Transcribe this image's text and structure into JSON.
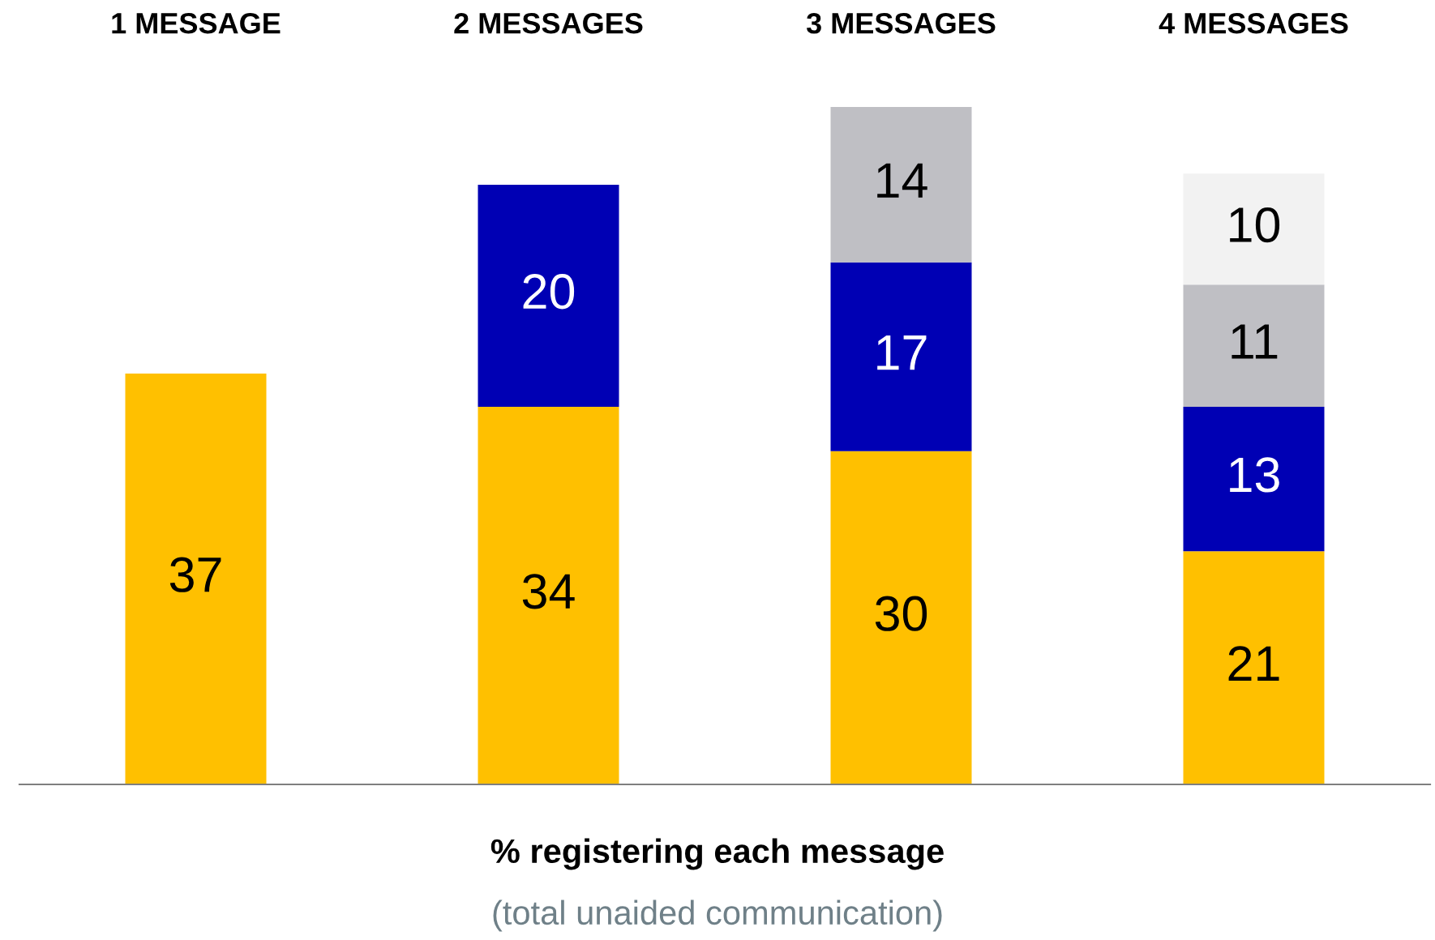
{
  "chart_data": {
    "type": "bar",
    "stacked": true,
    "categories": [
      "1 MESSAGE",
      "2 MESSAGES",
      "3 MESSAGES",
      "4 MESSAGES"
    ],
    "series": [
      {
        "color": "#ffc000",
        "values": [
          37,
          34,
          30,
          21
        ]
      },
      {
        "color": "#0000b4",
        "values": [
          null,
          20,
          17,
          13
        ]
      },
      {
        "color": "#bfbfc4",
        "values": [
          null,
          null,
          14,
          11
        ]
      },
      {
        "color": "#f2f2f2",
        "values": [
          null,
          null,
          null,
          10
        ]
      }
    ],
    "data_labels": true,
    "xlabel": "% registering each message",
    "annotations": [
      "(total unaided communication)"
    ],
    "grid": false
  }
}
